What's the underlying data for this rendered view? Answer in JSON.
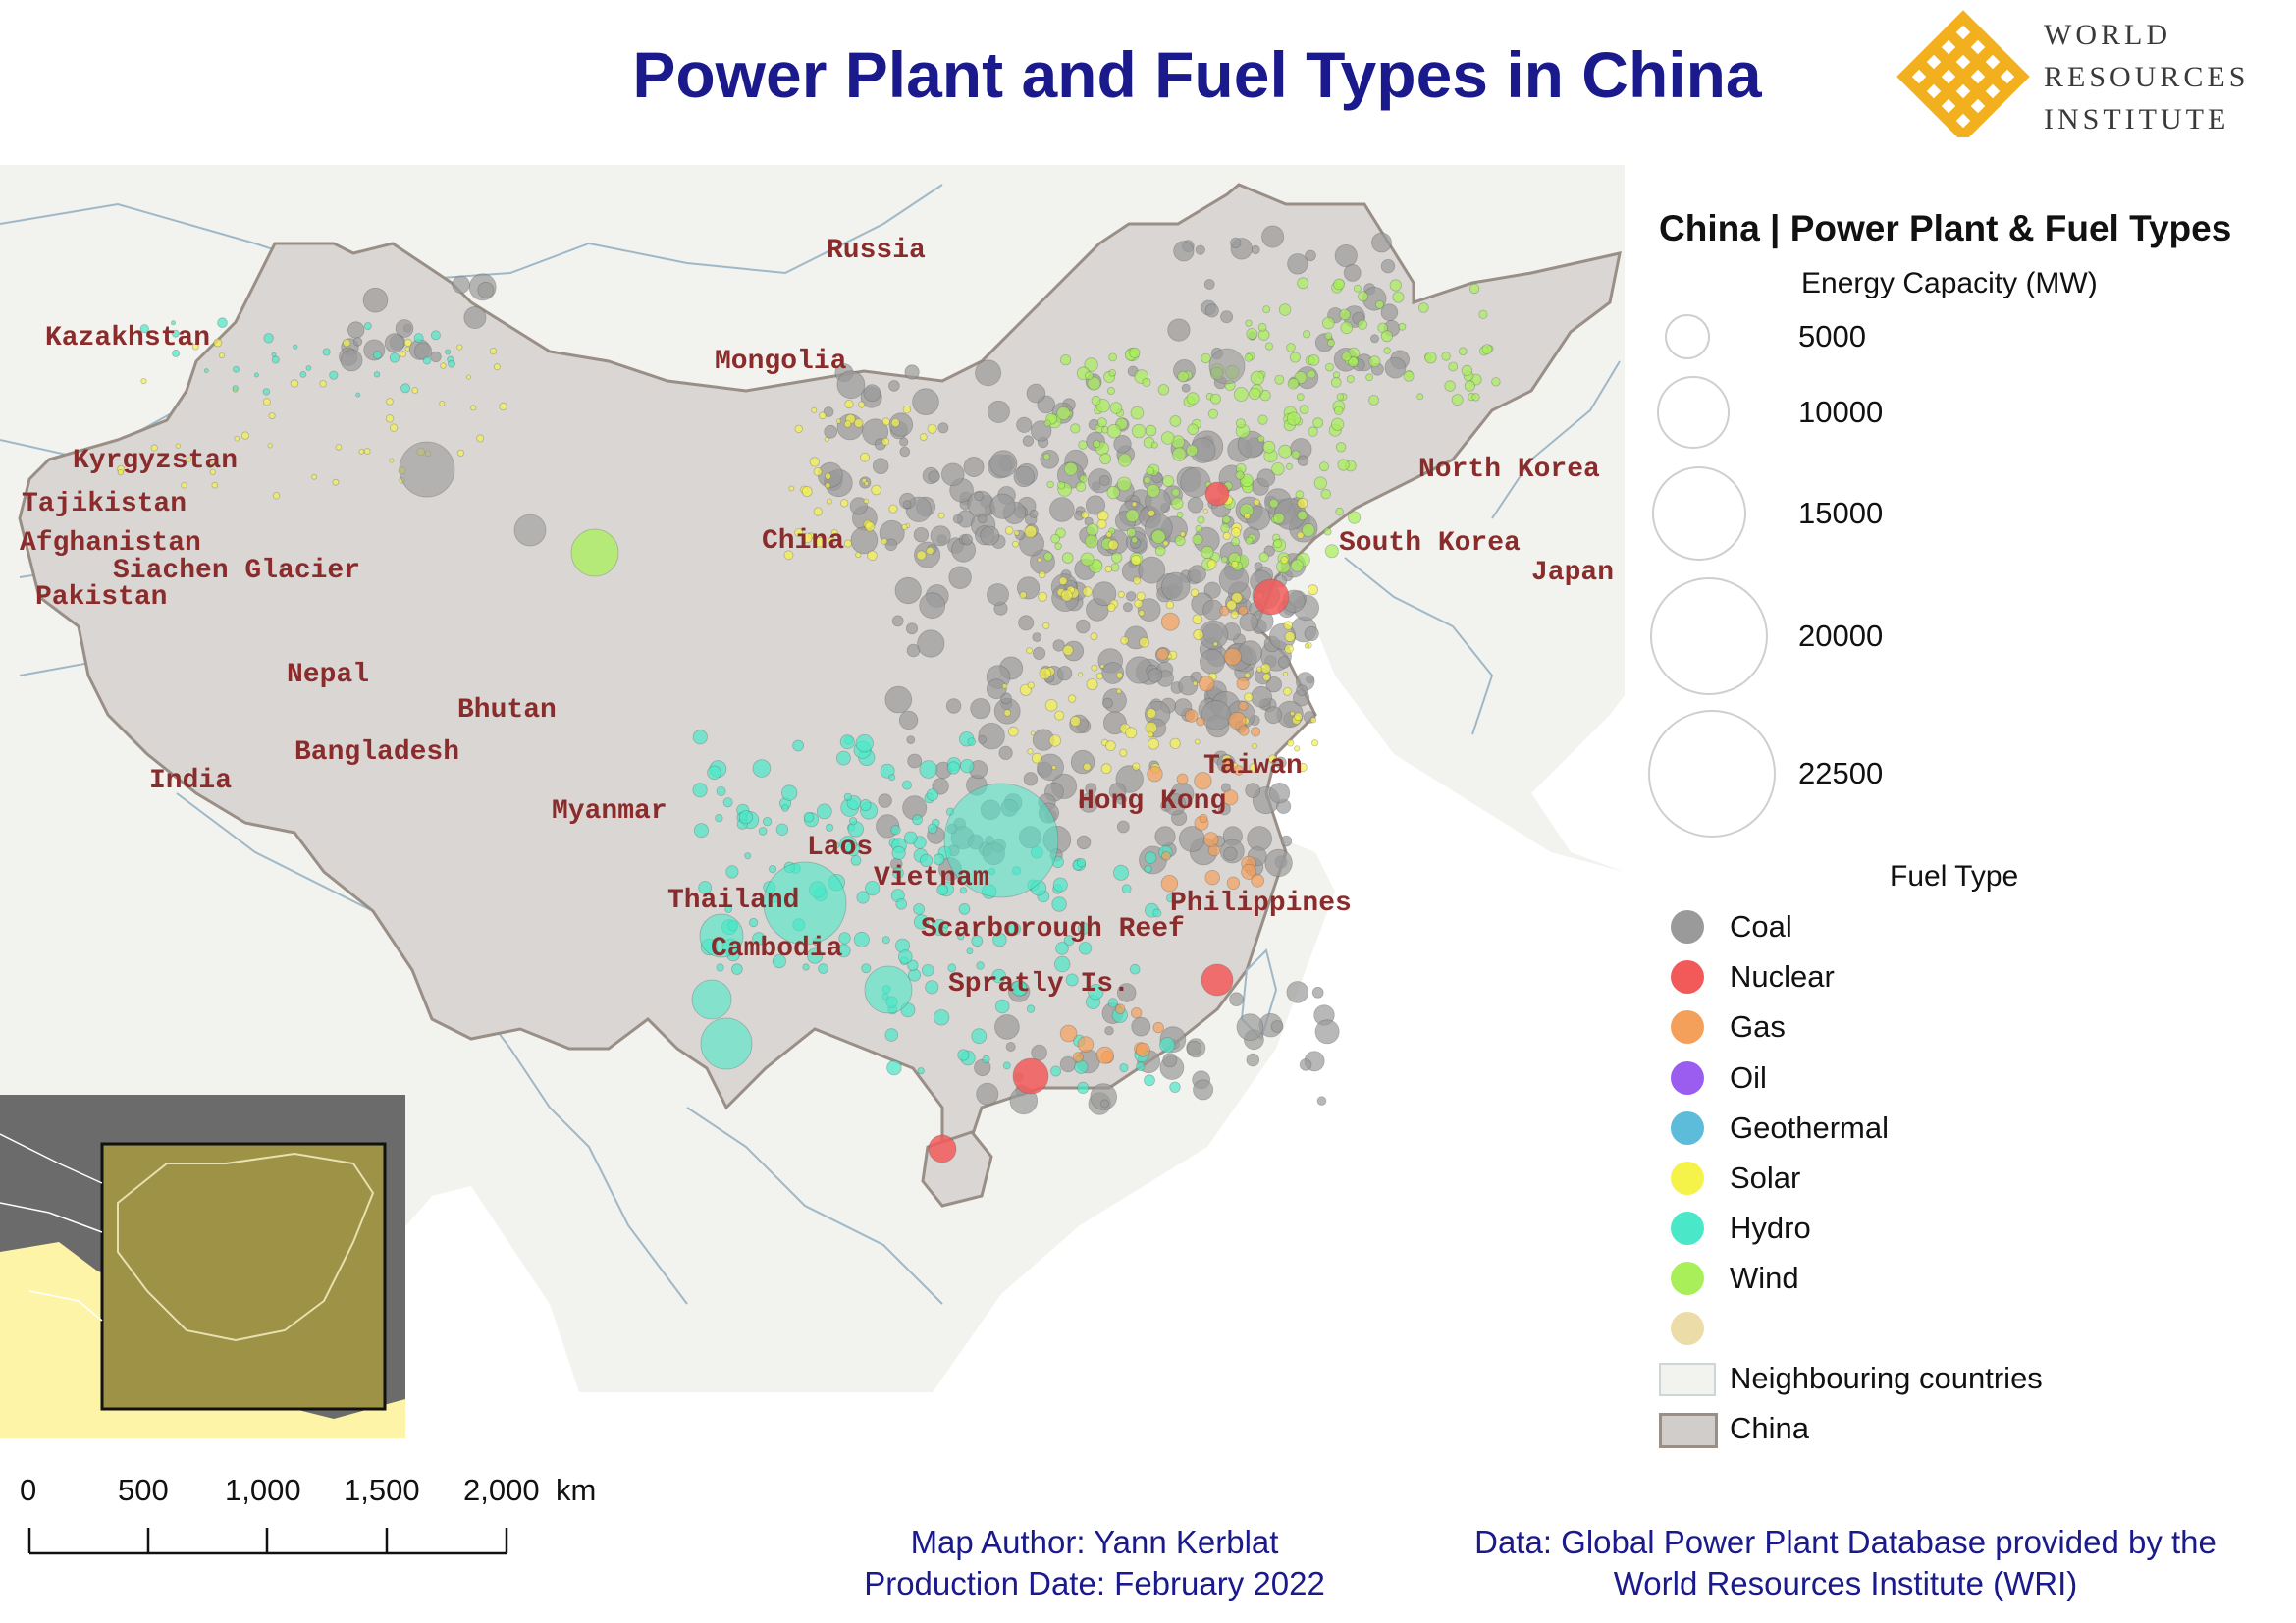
{
  "title": "Power Plant and Fuel Types in China",
  "logo": {
    "line1": "WORLD",
    "line2": "RESOURCES",
    "line3": "INSTITUTE"
  },
  "map": {
    "country_labels": {
      "russia": "Russia",
      "kazakhstan": "Kazakhstan",
      "mongolia": "Mongolia",
      "kyrgyzstan": "Kyrgyzstan",
      "tajikistan": "Tajikistan",
      "afghanistan": "Afghanistan",
      "siachen": "Siachen Glacier",
      "pakistan": "Pakistan",
      "china": "China",
      "north_korea": "North Korea",
      "south_korea": "South Korea",
      "japan": "Japan",
      "nepal": "Nepal",
      "bhutan": "Bhutan",
      "bangladesh": "Bangladesh",
      "india": "India",
      "myanmar": "Myanmar",
      "taiwan": "Taiwan",
      "hong_kong": "Hong Kong",
      "laos": "Laos",
      "vietnam": "Vietnam",
      "thailand": "Thailand",
      "philippines": "Philippines",
      "scarborough": "Scarborough Reef",
      "cambodia": "Cambodia",
      "spratly": "Spratly Is."
    },
    "colors": {
      "china_fill": "#d9d6d3",
      "china_stroke": "#9a8f86",
      "neighbour_fill": "#f2f2ee",
      "water": "#ffffff",
      "label": "#8b2c2c"
    }
  },
  "legend": {
    "title": "China | Power Plant & Fuel Types",
    "capacity_heading": "Energy Capacity (MW)",
    "capacity_values": [
      "5000",
      "10000",
      "15000",
      "20000",
      "22500"
    ],
    "fuel_heading": "Fuel Type",
    "fuels": [
      {
        "label": "Coal",
        "color": "#9a9a9a"
      },
      {
        "label": "Nuclear",
        "color": "#f25a5a"
      },
      {
        "label": "Gas",
        "color": "#f5a05a"
      },
      {
        "label": "Oil",
        "color": "#9b5cf0"
      },
      {
        "label": "Geothermal",
        "color": "#5cbcd9"
      },
      {
        "label": "Solar",
        "color": "#f5f24a"
      },
      {
        "label": "Hydro",
        "color": "#4ae8c8"
      },
      {
        "label": "Wind",
        "color": "#a8ef5a"
      },
      {
        "label": "",
        "color": "#ecdca8"
      }
    ],
    "neighbour_label": "Neighbouring countries",
    "china_label": "China"
  },
  "scalebar": {
    "labels": [
      "0",
      "500",
      "1,000",
      "1,500",
      "2,000"
    ],
    "unit": "km"
  },
  "footer": {
    "author_line1": "Map Author: Yann Kerblat",
    "author_line2": "Production Date: February 2022",
    "data_line1": "Data: Global Power Plant Database provided by the",
    "data_line2": "World Resources Institute (WRI)"
  }
}
